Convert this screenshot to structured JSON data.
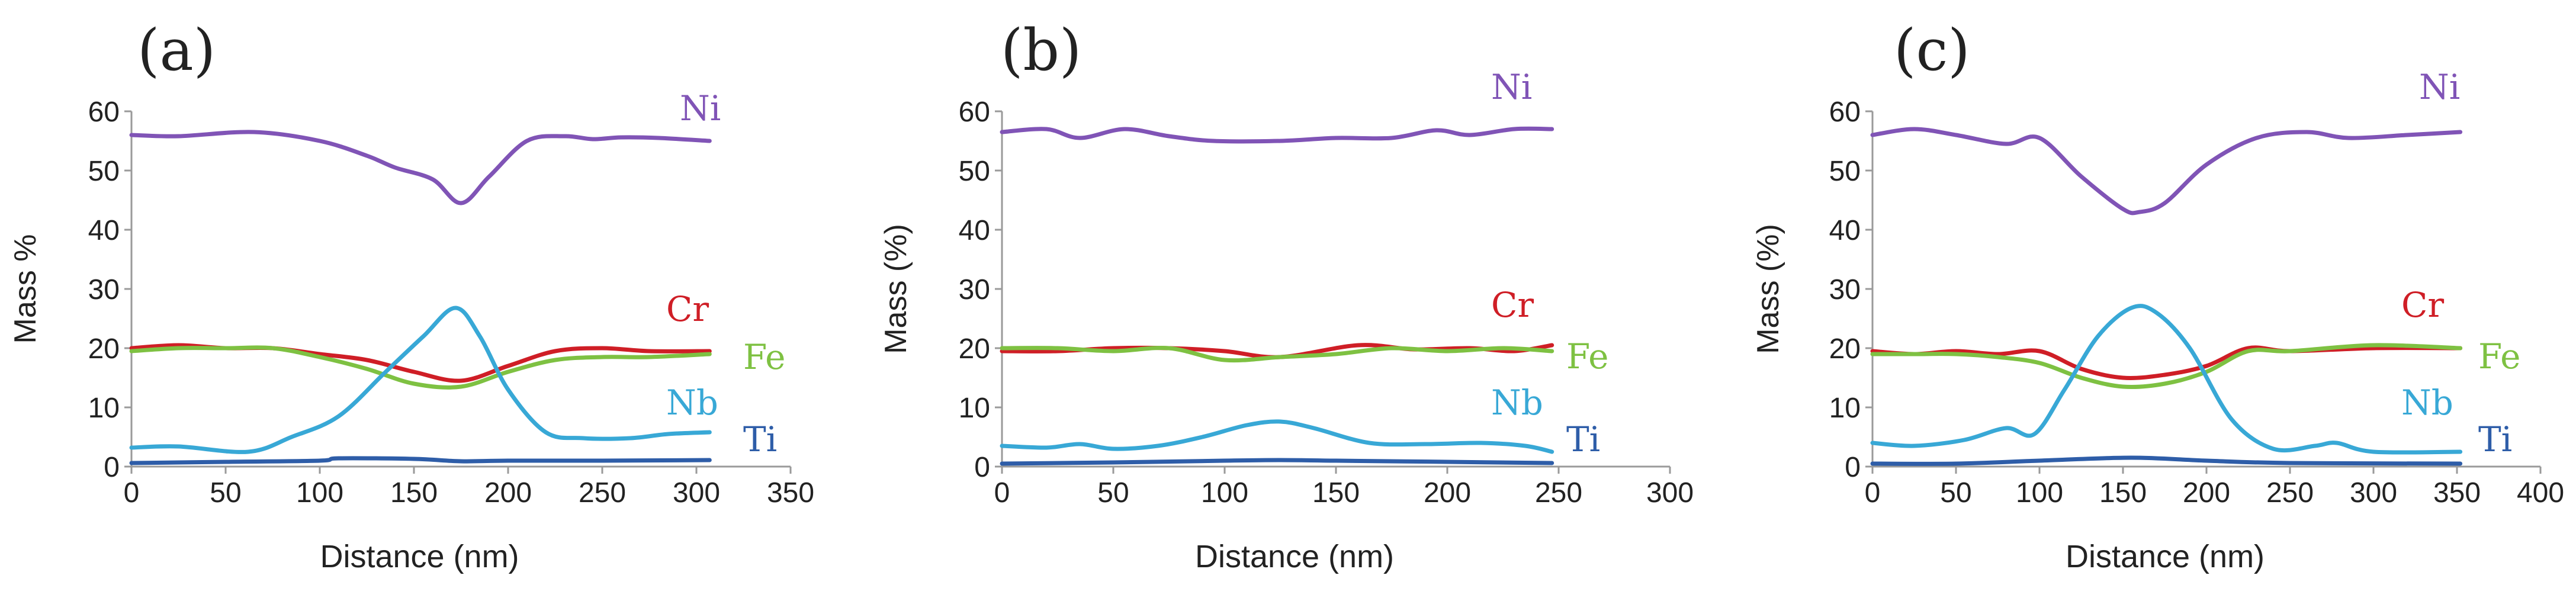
{
  "colors": {
    "Ni": "#8054b6",
    "Cr": "#cf1e26",
    "Fe": "#7ec142",
    "Nb": "#38a8d6",
    "Ti": "#2e5da8",
    "axis": "#9a9a9a",
    "text": "#222222"
  },
  "chart_data": [
    {
      "type": "line",
      "panel_label": "(a)",
      "xlabel": "Distance (nm)",
      "ylabel": "Mass %",
      "xlim": [
        0,
        350
      ],
      "ylim": [
        0,
        60
      ],
      "xticks": [
        "0",
        "50",
        "100",
        "150",
        "200",
        "250",
        "300",
        "350"
      ],
      "yticks": [
        "0",
        "10",
        "20",
        "30",
        "40",
        "50",
        "60"
      ],
      "series": [
        {
          "name": "Ni",
          "label": "Ni",
          "x": [
            0,
            25,
            65,
            100,
            125,
            140,
            160,
            175,
            190,
            210,
            230,
            245,
            260,
            280,
            307
          ],
          "y": [
            56,
            55.8,
            56.5,
            55,
            52.5,
            50.5,
            48.5,
            44.5,
            49,
            55,
            55.8,
            55.3,
            55.6,
            55.5,
            55
          ]
        },
        {
          "name": "Cr",
          "label": "Cr",
          "x": [
            0,
            25,
            50,
            75,
            100,
            125,
            150,
            175,
            200,
            225,
            250,
            275,
            307
          ],
          "y": [
            20,
            20.5,
            20,
            20,
            19,
            18,
            16,
            14.5,
            17,
            19.5,
            20,
            19.5,
            19.5
          ]
        },
        {
          "name": "Fe",
          "label": "Fe",
          "x": [
            0,
            25,
            50,
            75,
            100,
            125,
            150,
            175,
            200,
            225,
            250,
            275,
            307
          ],
          "y": [
            19.5,
            20,
            20,
            20,
            18.5,
            16.5,
            14,
            13.5,
            16,
            18,
            18.5,
            18.5,
            19
          ]
        },
        {
          "name": "Nb",
          "label": "Nb",
          "x": [
            0,
            25,
            62,
            85,
            110,
            135,
            155,
            172,
            185,
            200,
            220,
            240,
            265,
            285,
            307
          ],
          "y": [
            3.2,
            3.4,
            2.5,
            5,
            8.5,
            16,
            22,
            26.8,
            22,
            13,
            5.8,
            4.8,
            4.8,
            5.5,
            5.8
          ]
        },
        {
          "name": "Ti",
          "label": "Ti",
          "x": [
            0,
            50,
            100,
            110,
            150,
            175,
            200,
            250,
            307
          ],
          "y": [
            0.6,
            0.8,
            1,
            1.4,
            1.3,
            0.9,
            1,
            1,
            1.1
          ]
        }
      ],
      "legend": "inline labels at right end of lines"
    },
    {
      "type": "line",
      "panel_label": "(b)",
      "xlabel": "Distance (nm)",
      "ylabel": "Mass (%)",
      "xlim": [
        0,
        300
      ],
      "ylim": [
        0,
        60
      ],
      "xticks": [
        "0",
        "50",
        "100",
        "150",
        "200",
        "250",
        "300"
      ],
      "yticks": [
        "0",
        "10",
        "20",
        "30",
        "40",
        "50",
        "60"
      ],
      "series": [
        {
          "name": "Ni",
          "label": "Ni",
          "x": [
            0,
            20,
            35,
            55,
            75,
            95,
            125,
            150,
            175,
            195,
            210,
            230,
            247
          ],
          "y": [
            56.5,
            57,
            55.5,
            57,
            55.8,
            55,
            55,
            55.5,
            55.5,
            56.8,
            56,
            57,
            57
          ]
        },
        {
          "name": "Cr",
          "label": "Cr",
          "x": [
            0,
            25,
            50,
            75,
            100,
            125,
            160,
            185,
            210,
            230,
            247
          ],
          "y": [
            19.5,
            19.5,
            20,
            20,
            19.5,
            18.5,
            20.5,
            19.8,
            20,
            19.5,
            20.5
          ]
        },
        {
          "name": "Fe",
          "label": "Fe",
          "x": [
            0,
            25,
            50,
            75,
            100,
            125,
            150,
            175,
            200,
            225,
            247
          ],
          "y": [
            20,
            20,
            19.5,
            20,
            18,
            18.5,
            19,
            20,
            19.5,
            20,
            19.5
          ]
        },
        {
          "name": "Nb",
          "label": "Nb",
          "x": [
            0,
            20,
            35,
            50,
            70,
            90,
            110,
            125,
            140,
            165,
            190,
            215,
            235,
            247
          ],
          "y": [
            3.5,
            3.2,
            3.8,
            3,
            3.5,
            5,
            7,
            7.6,
            6.5,
            4,
            3.8,
            4,
            3.5,
            2.5
          ]
        },
        {
          "name": "Ti",
          "label": "Ti",
          "x": [
            0,
            50,
            100,
            125,
            150,
            200,
            247
          ],
          "y": [
            0.5,
            0.7,
            1,
            1.1,
            1,
            0.8,
            0.6
          ]
        }
      ],
      "legend": "inline labels at right end of lines"
    },
    {
      "type": "line",
      "panel_label": "(c)",
      "xlabel": "Distance (nm)",
      "ylabel": "Mass (%)",
      "xlim": [
        0,
        400
      ],
      "ylim": [
        0,
        60
      ],
      "xticks": [
        "0",
        "50",
        "100",
        "150",
        "200",
        "250",
        "300",
        "350",
        "400"
      ],
      "yticks": [
        "0",
        "10",
        "20",
        "30",
        "40",
        "50",
        "60"
      ],
      "series": [
        {
          "name": "Ni",
          "label": "Ni",
          "x": [
            0,
            25,
            50,
            80,
            100,
            125,
            150,
            160,
            175,
            200,
            230,
            260,
            285,
            320,
            352
          ],
          "y": [
            56,
            57,
            56,
            54.5,
            55.5,
            49,
            43.5,
            43,
            44.5,
            51,
            55.5,
            56.5,
            55.5,
            56,
            56.5
          ]
        },
        {
          "name": "Cr",
          "label": "Cr",
          "x": [
            0,
            25,
            50,
            75,
            100,
            125,
            150,
            175,
            200,
            225,
            250,
            300,
            352
          ],
          "y": [
            19.5,
            19,
            19.5,
            19,
            19.5,
            16.5,
            15,
            15.5,
            17,
            20,
            19.5,
            20,
            20
          ]
        },
        {
          "name": "Fe",
          "label": "Fe",
          "x": [
            0,
            25,
            50,
            75,
            100,
            125,
            150,
            175,
            200,
            225,
            250,
            300,
            352
          ],
          "y": [
            19,
            19,
            19,
            18.5,
            17.5,
            15,
            13.5,
            14,
            16,
            19.5,
            19.5,
            20.5,
            20
          ]
        },
        {
          "name": "Nb",
          "label": "Nb",
          "x": [
            0,
            25,
            55,
            80,
            97,
            115,
            135,
            155,
            170,
            190,
            215,
            240,
            265,
            278,
            300,
            352
          ],
          "y": [
            4,
            3.5,
            4.5,
            6.5,
            5.5,
            13,
            22,
            26.8,
            26,
            20,
            8,
            3,
            3.5,
            4,
            2.5,
            2.5
          ]
        },
        {
          "name": "Ti",
          "label": "Ti",
          "x": [
            0,
            50,
            100,
            155,
            200,
            250,
            352
          ],
          "y": [
            0.5,
            0.5,
            1,
            1.5,
            1,
            0.6,
            0.5
          ]
        }
      ],
      "legend": "inline labels at right end of lines"
    }
  ]
}
